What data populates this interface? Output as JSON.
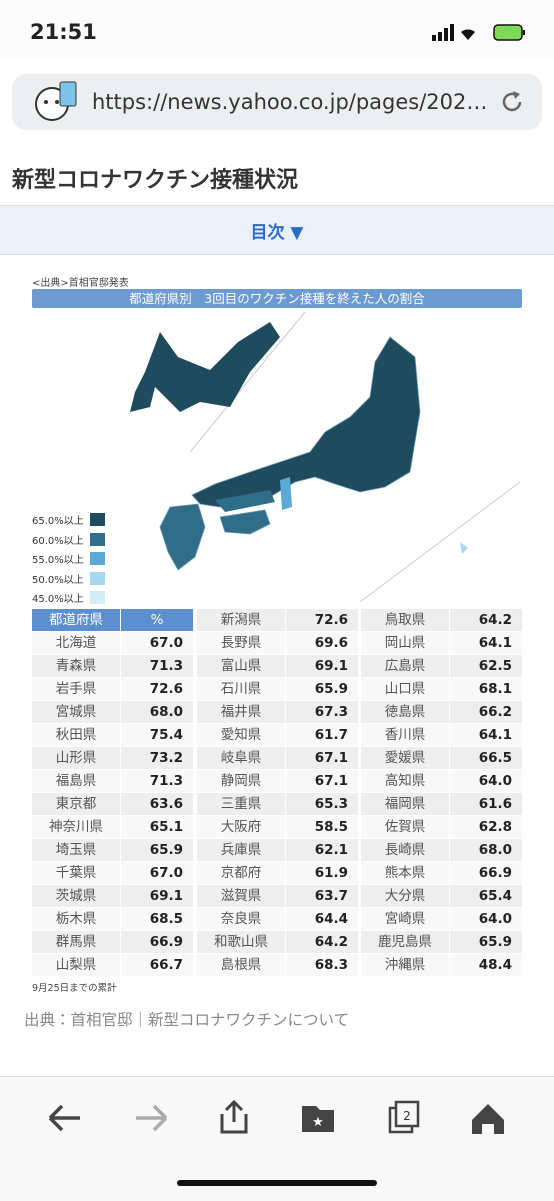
{
  "status_bar": {
    "time": "21:51"
  },
  "browser": {
    "url": "https://news.yahoo.co.jp/pages/202…"
  },
  "article": {
    "title": "新型コロナワクチン接種状況",
    "toc": "目次",
    "figure": {
      "source_note": "<出典>首相官邸発表",
      "title": "都道府県別　3回目のワクチン接種を終えた人の割合",
      "legend": [
        {
          "label": "65.0%以上",
          "color": "#1f4b5f"
        },
        {
          "label": "60.0%以上",
          "color": "#2f6d88"
        },
        {
          "label": "55.0%以上",
          "color": "#5aa9d6"
        },
        {
          "label": "50.0%以上",
          "color": "#a8d8ef"
        },
        {
          "label": "45.0%以上",
          "color": "#d2edf7"
        }
      ],
      "table": {
        "header": [
          "都道府県",
          "%"
        ],
        "rows": [
          [
            "北海道",
            "67.0"
          ],
          [
            "青森県",
            "71.3"
          ],
          [
            "岩手県",
            "72.6"
          ],
          [
            "宮城県",
            "68.0"
          ],
          [
            "秋田県",
            "75.4"
          ],
          [
            "山形県",
            "73.2"
          ],
          [
            "福島県",
            "71.3"
          ],
          [
            "東京都",
            "63.6"
          ],
          [
            "神奈川県",
            "65.1"
          ],
          [
            "埼玉県",
            "65.9"
          ],
          [
            "千葉県",
            "67.0"
          ],
          [
            "茨城県",
            "69.1"
          ],
          [
            "栃木県",
            "68.5"
          ],
          [
            "群馬県",
            "66.9"
          ],
          [
            "山梨県",
            "66.7"
          ],
          [
            "新潟県",
            "72.6"
          ],
          [
            "長野県",
            "69.6"
          ],
          [
            "富山県",
            "69.1"
          ],
          [
            "石川県",
            "65.9"
          ],
          [
            "福井県",
            "67.3"
          ],
          [
            "愛知県",
            "61.7"
          ],
          [
            "岐阜県",
            "67.1"
          ],
          [
            "静岡県",
            "67.1"
          ],
          [
            "三重県",
            "65.3"
          ],
          [
            "大阪府",
            "58.5"
          ],
          [
            "兵庫県",
            "62.1"
          ],
          [
            "京都府",
            "61.9"
          ],
          [
            "滋賀県",
            "63.7"
          ],
          [
            "奈良県",
            "64.4"
          ],
          [
            "和歌山県",
            "64.2"
          ],
          [
            "島根県",
            "68.3"
          ],
          [
            "鳥取県",
            "64.2"
          ],
          [
            "岡山県",
            "64.1"
          ],
          [
            "広島県",
            "62.5"
          ],
          [
            "山口県",
            "68.1"
          ],
          [
            "徳島県",
            "66.2"
          ],
          [
            "香川県",
            "64.1"
          ],
          [
            "愛媛県",
            "66.5"
          ],
          [
            "高知県",
            "64.0"
          ],
          [
            "福岡県",
            "61.6"
          ],
          [
            "佐賀県",
            "62.8"
          ],
          [
            "長崎県",
            "68.0"
          ],
          [
            "熊本県",
            "66.9"
          ],
          [
            "大分県",
            "65.4"
          ],
          [
            "宮崎県",
            "64.0"
          ],
          [
            "鹿児島県",
            "65.9"
          ],
          [
            "沖縄県",
            "48.4"
          ]
        ]
      },
      "footnote": "9月25日までの累計"
    },
    "source": "出典：首相官邸｜新型コロナワクチンについて"
  },
  "toolbar": {
    "tabs_count": "2"
  }
}
